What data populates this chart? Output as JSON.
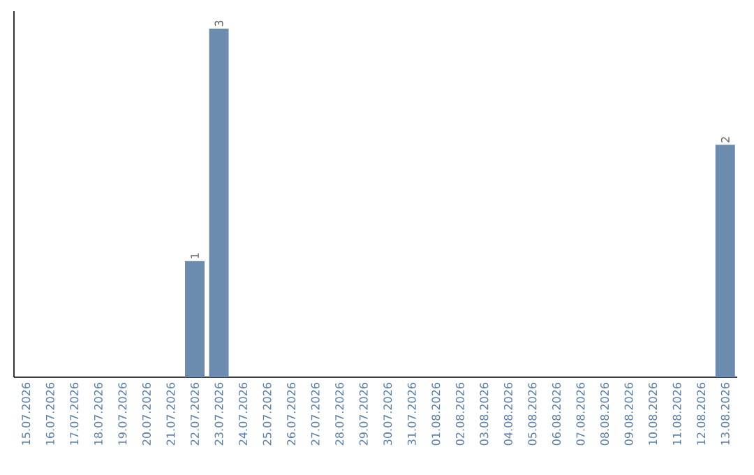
{
  "chart_data": {
    "type": "bar",
    "categories": [
      "15.07.2026",
      "16.07.2026",
      "17.07.2026",
      "18.07.2026",
      "19.07.2026",
      "20.07.2026",
      "21.07.2026",
      "22.07.2026",
      "23.07.2026",
      "24.07.2026",
      "25.07.2026",
      "26.07.2026",
      "27.07.2026",
      "28.07.2026",
      "29.07.2026",
      "30.07.2026",
      "31.07.2026",
      "01.08.2026",
      "02.08.2026",
      "03.08.2026",
      "04.08.2026",
      "05.08.2026",
      "06.08.2026",
      "07.08.2026",
      "08.08.2026",
      "09.08.2026",
      "10.08.2026",
      "11.08.2026",
      "12.08.2026",
      "13.08.2026"
    ],
    "values": [
      0,
      0,
      0,
      0,
      0,
      0,
      0,
      1,
      3,
      0,
      0,
      0,
      0,
      0,
      0,
      0,
      0,
      0,
      0,
      0,
      0,
      0,
      0,
      0,
      0,
      0,
      0,
      0,
      0,
      2
    ],
    "value_labels": [
      null,
      null,
      null,
      null,
      null,
      null,
      null,
      "1",
      "3",
      null,
      null,
      null,
      null,
      null,
      null,
      null,
      null,
      null,
      null,
      null,
      null,
      null,
      null,
      null,
      null,
      null,
      null,
      null,
      null,
      "2"
    ],
    "color": "#6b8cae",
    "ylim": [
      0,
      3.15
    ],
    "tick_labels": "x"
  }
}
